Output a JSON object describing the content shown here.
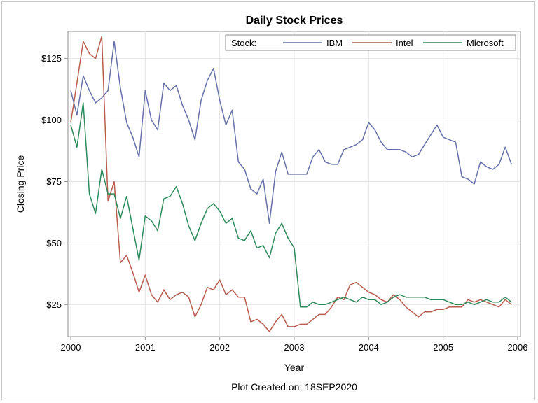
{
  "chart_data": {
    "type": "line",
    "title": "Daily Stock Prices",
    "xlabel": "Year",
    "ylabel": "Closing Price",
    "xlim": [
      2000,
      2006
    ],
    "ylim": [
      12,
      136
    ],
    "x_ticks": [
      2000,
      2001,
      2002,
      2003,
      2004,
      2005,
      2006
    ],
    "x_tick_labels": [
      "2000",
      "2001",
      "2002",
      "2003",
      "2004",
      "2005",
      "2006"
    ],
    "y_ticks": [
      25,
      50,
      75,
      100,
      125
    ],
    "y_tick_labels": [
      "$25",
      "$50",
      "$75",
      "$100",
      "$125"
    ],
    "grid": true,
    "legend": {
      "title": "Stock:",
      "position": "top-right"
    },
    "footnote": "Plot Created on: 18SEP2020",
    "x": [
      2000.0,
      2000.083,
      2000.167,
      2000.25,
      2000.333,
      2000.417,
      2000.5,
      2000.583,
      2000.667,
      2000.75,
      2000.833,
      2000.917,
      2001.0,
      2001.083,
      2001.167,
      2001.25,
      2001.333,
      2001.417,
      2001.5,
      2001.583,
      2001.667,
      2001.75,
      2001.833,
      2001.917,
      2002.0,
      2002.083,
      2002.167,
      2002.25,
      2002.333,
      2002.417,
      2002.5,
      2002.583,
      2002.667,
      2002.75,
      2002.833,
      2002.917,
      2003.0,
      2003.083,
      2003.167,
      2003.25,
      2003.333,
      2003.417,
      2003.5,
      2003.583,
      2003.667,
      2003.75,
      2003.833,
      2003.917,
      2004.0,
      2004.083,
      2004.167,
      2004.25,
      2004.333,
      2004.417,
      2004.5,
      2004.583,
      2004.667,
      2004.75,
      2004.833,
      2004.917,
      2005.0,
      2005.083,
      2005.167,
      2005.25,
      2005.333,
      2005.417,
      2005.5,
      2005.583,
      2005.667,
      2005.75,
      2005.833,
      2005.917
    ],
    "series": [
      {
        "name": "IBM",
        "color": "#6670a8",
        "values": [
          112,
          102,
          118,
          112,
          107,
          109,
          112,
          132,
          113,
          99,
          93,
          85,
          112,
          100,
          96,
          115,
          112,
          114,
          106,
          100,
          92,
          108,
          116,
          121,
          108,
          98,
          104,
          83,
          80,
          72,
          70,
          76,
          58,
          79,
          87,
          78,
          78,
          78,
          78,
          85,
          88,
          83,
          82,
          82,
          88,
          89,
          90,
          92,
          99,
          96,
          91,
          88,
          88,
          88,
          87,
          85,
          86,
          90,
          94,
          98,
          93,
          92,
          91,
          77,
          76,
          74,
          83,
          81,
          80,
          82,
          89,
          82
        ]
      },
      {
        "name": "Intel",
        "color": "#b85c4e",
        "values": [
          99,
          115,
          132,
          127,
          125,
          134,
          67,
          75,
          42,
          45,
          38,
          30,
          37,
          29,
          26,
          31,
          27,
          29,
          30,
          28,
          20,
          25,
          32,
          31,
          35,
          29,
          31,
          28,
          28,
          18,
          19,
          17,
          14,
          18,
          21,
          16,
          16,
          17,
          17,
          19,
          21,
          21,
          24,
          28,
          27,
          33,
          34,
          32,
          30,
          29,
          27,
          26,
          29,
          27,
          24,
          22,
          20,
          22,
          22,
          23,
          23,
          24,
          24,
          24,
          27,
          26,
          27,
          26,
          25,
          24,
          27,
          25
        ]
      },
      {
        "name": "Microsoft",
        "color": "#2e8a5a",
        "values": [
          98,
          89,
          107,
          70,
          62,
          80,
          70,
          70,
          60,
          69,
          56,
          43,
          61,
          59,
          55,
          68,
          69,
          73,
          66,
          57,
          51,
          58,
          64,
          66,
          63,
          58,
          60,
          52,
          51,
          55,
          48,
          49,
          44,
          54,
          58,
          52,
          48,
          24,
          24,
          26,
          25,
          25,
          26,
          27,
          28,
          27,
          26,
          28,
          27,
          27,
          25,
          26,
          28,
          29,
          28,
          28,
          28,
          28,
          27,
          27,
          27,
          26,
          25,
          25,
          26,
          25,
          26,
          27,
          26,
          26,
          28,
          26
        ]
      }
    ]
  }
}
